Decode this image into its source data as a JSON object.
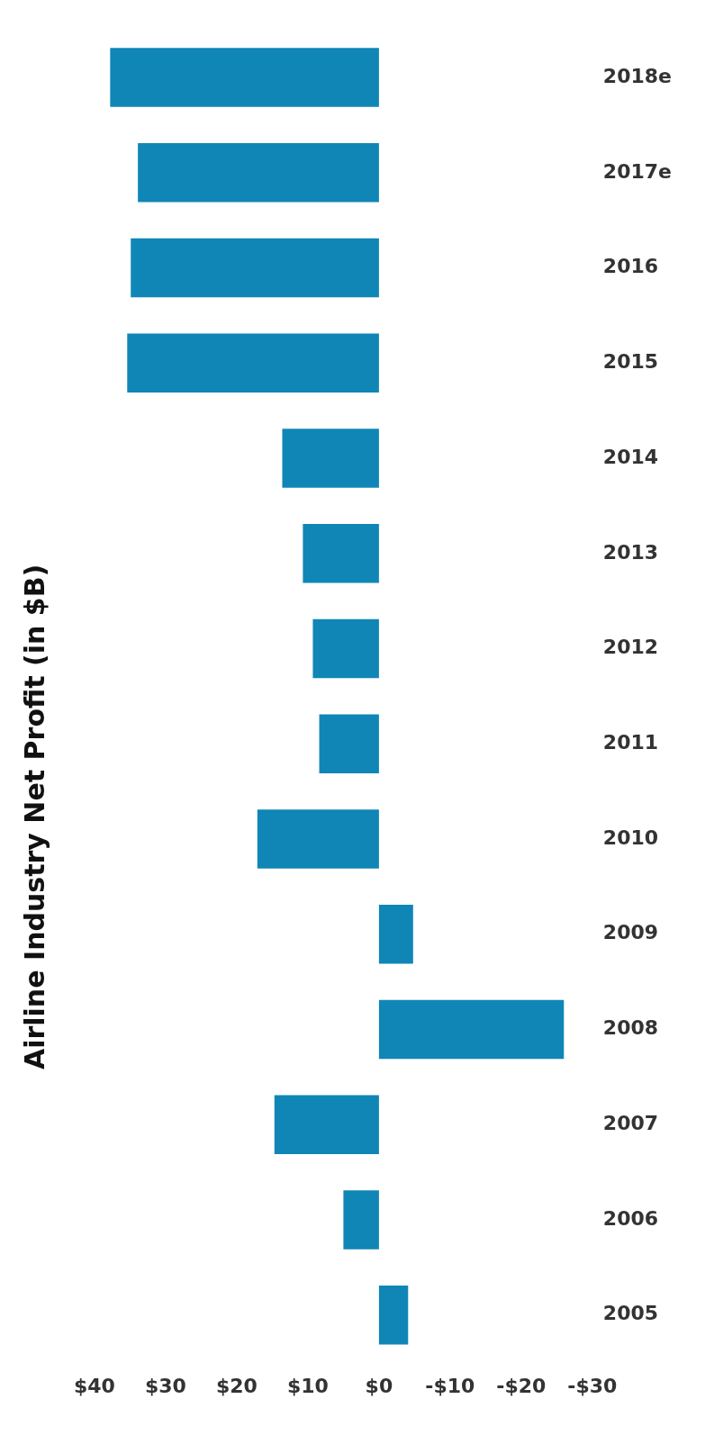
{
  "chart_data": {
    "type": "bar",
    "orientation": "horizontal",
    "title": "Airline Industry Net Profit (in $B)",
    "categories": [
      "2018e",
      "2017e",
      "2016",
      "2015",
      "2014",
      "2013",
      "2012",
      "2011",
      "2010",
      "2009",
      "2008",
      "2007",
      "2006",
      "2005"
    ],
    "values": [
      37.8,
      33.9,
      34.9,
      35.4,
      13.6,
      10.7,
      9.3,
      8.4,
      17.1,
      -4.8,
      -26.0,
      14.7,
      5.0,
      -4.1
    ],
    "color": "#0f86b6",
    "xlim": [
      40,
      -30
    ],
    "xticks": [
      {
        "value": 40,
        "label": "$40"
      },
      {
        "value": 30,
        "label": "$30"
      },
      {
        "value": 20,
        "label": "$20"
      },
      {
        "value": 10,
        "label": "$10"
      },
      {
        "value": 0,
        "label": "$0"
      },
      {
        "value": -10,
        "label": "-$10"
      },
      {
        "value": -20,
        "label": "-$20"
      },
      {
        "value": -30,
        "label": "-$30"
      }
    ],
    "grid": false,
    "legend": false
  }
}
